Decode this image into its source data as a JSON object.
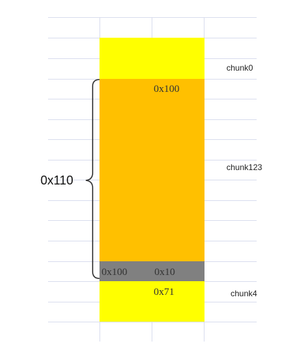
{
  "diagram": {
    "chunks": [
      {
        "label": "chunk0",
        "color": "#FFFF00"
      },
      {
        "label": "chunk123",
        "color": "#FFC000",
        "size_text": "0x100"
      },
      {
        "size_prev_text": "0x100",
        "size_text": "0x10",
        "color": "#808080"
      },
      {
        "label": "chunk4",
        "color": "#FFFF00",
        "size_text": "0x71"
      }
    ],
    "brace": {
      "label": "0x110"
    },
    "grid_line_color": "#D9DDEE",
    "brace_color": "#333333"
  }
}
